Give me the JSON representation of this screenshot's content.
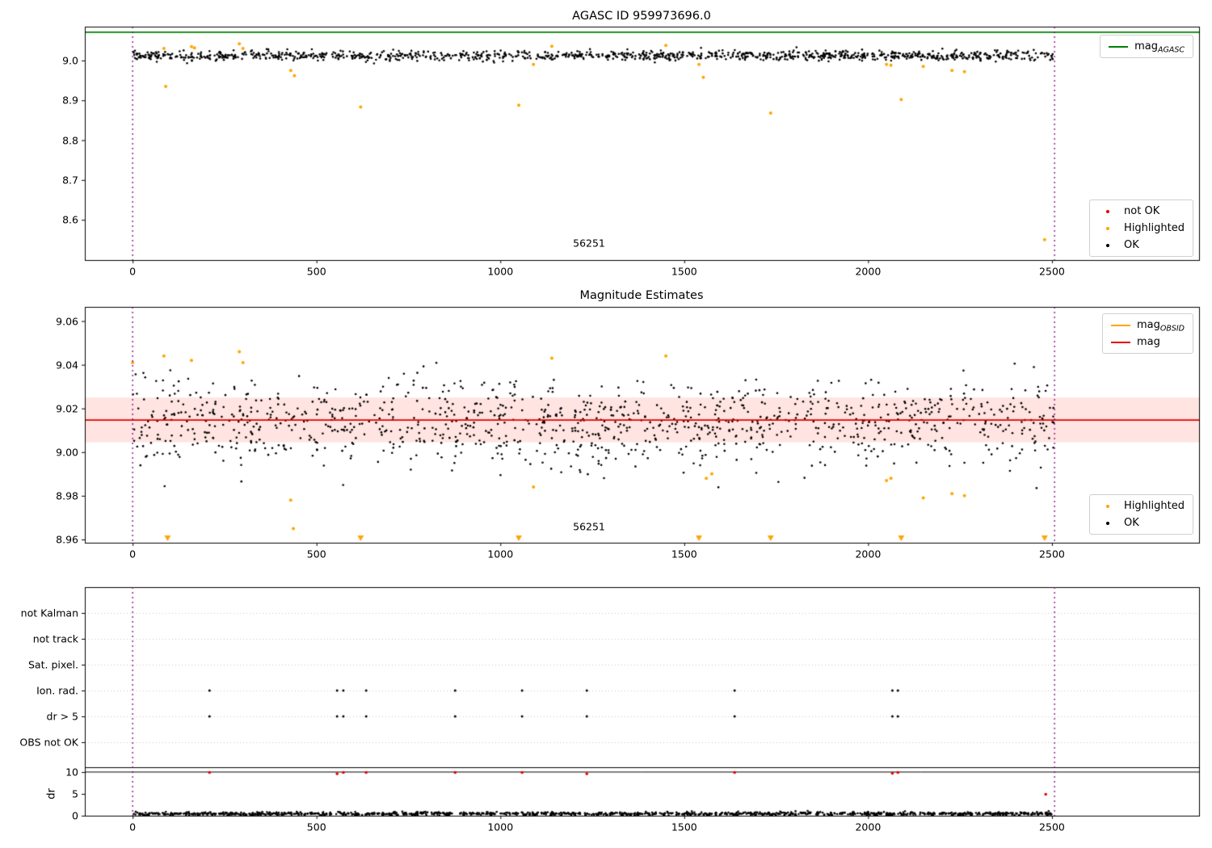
{
  "chart_data": [
    {
      "id": "agasc-mag-panel",
      "type": "scatter",
      "title": "AGASC ID 959973696.0",
      "xlim": [
        -130,
        2900
      ],
      "ylim": [
        8.499,
        9.085
      ],
      "xticks": [
        "0",
        "500",
        "1000",
        "1500",
        "2000",
        "2500"
      ],
      "yticks": [
        "8.6",
        "8.7",
        "8.8",
        "8.9",
        "9.0"
      ],
      "mag_agasc_line": {
        "value": 9.071,
        "color": "#008000"
      },
      "vlines": {
        "x": [
          0,
          2507
        ],
        "color": "#800080",
        "style": "dotted"
      },
      "obsid_annotation": {
        "text": "56251",
        "x": 1241,
        "y": 8.53
      },
      "ok_scatter": {
        "count": 1150,
        "x_range": [
          0,
          2505
        ],
        "mean": 9.012,
        "std": 0.0062,
        "clip": [
          8.988,
          9.036
        ],
        "color": "#000000",
        "seed": 12345
      },
      "highlighted_points": [
        [
          85,
          9.03
        ],
        [
          90,
          8.935
        ],
        [
          160,
          9.035
        ],
        [
          168,
          9.032
        ],
        [
          290,
          9.042
        ],
        [
          300,
          9.03
        ],
        [
          430,
          8.975
        ],
        [
          440,
          8.962
        ],
        [
          620,
          8.883
        ],
        [
          1050,
          8.888
        ],
        [
          1090,
          8.99
        ],
        [
          1140,
          9.036
        ],
        [
          1450,
          9.038
        ],
        [
          1540,
          8.99
        ],
        [
          1552,
          8.958
        ],
        [
          1735,
          8.868
        ],
        [
          2050,
          8.99
        ],
        [
          2062,
          8.988
        ],
        [
          2090,
          8.902
        ],
        [
          2150,
          8.985
        ],
        [
          2228,
          8.975
        ],
        [
          2262,
          8.972
        ],
        [
          2480,
          8.55
        ]
      ],
      "highlight_color": "#FFA500",
      "legend_top": [
        {
          "main": "mag",
          "sub": "AGASC",
          "color": "#008000",
          "marker": "line"
        }
      ],
      "legend_bottom": [
        {
          "label": "not OK",
          "color": "#e60000",
          "marker": "dot"
        },
        {
          "label": "Highlighted",
          "color": "#FFA500",
          "marker": "dot"
        },
        {
          "label": "OK",
          "color": "#000000",
          "marker": "dot"
        }
      ]
    },
    {
      "id": "magnitude-estimates-panel",
      "type": "scatter",
      "title": "Magnitude Estimates",
      "xlim": [
        -130,
        2900
      ],
      "ylim": [
        8.9585,
        9.0665
      ],
      "xticks": [
        "0",
        "500",
        "1000",
        "1500",
        "2000",
        "2500"
      ],
      "yticks": [
        "8.96",
        "8.98",
        "9.00",
        "9.02",
        "9.04",
        "9.06"
      ],
      "mag_line": {
        "value": 9.0147,
        "color": "#e60000"
      },
      "mag_band": {
        "low": 9.0045,
        "high": 9.025,
        "color": "rgba(255,90,70,0.16)"
      },
      "vlines": {
        "x": [
          0,
          2507
        ],
        "color": "#800080",
        "style": "dotted"
      },
      "obsid_annotation": {
        "text": "56251",
        "x": 1241,
        "y": 8.9635
      },
      "ok_scatter": {
        "count": 1150,
        "x_range": [
          0,
          2505
        ],
        "mean": 9.0135,
        "std": 0.0095,
        "clip": [
          8.979,
          9.047
        ],
        "color": "#000000",
        "seed": 777
      },
      "highlighted_points": [
        [
          0,
          9.041
        ],
        [
          85,
          9.044
        ],
        [
          160,
          9.042
        ],
        [
          290,
          9.046
        ],
        [
          300,
          9.041
        ],
        [
          430,
          8.978
        ],
        [
          437,
          8.965
        ],
        [
          1090,
          8.984
        ],
        [
          1140,
          9.043
        ],
        [
          1450,
          9.044
        ],
        [
          1560,
          8.988
        ],
        [
          1575,
          8.99
        ],
        [
          2050,
          8.987
        ],
        [
          2062,
          8.988
        ],
        [
          2150,
          8.979
        ],
        [
          2228,
          8.981
        ],
        [
          2262,
          8.98
        ]
      ],
      "clipped_low_x": [
        95,
        620,
        1050,
        1540,
        1735,
        2090,
        2480
      ],
      "clipped_low_value": 8.9605,
      "highlight_color": "#FFA500",
      "legend_top": [
        {
          "main": "mag",
          "sub": "OBSID",
          "color": "#FFA500",
          "marker": "line"
        },
        {
          "main": "mag",
          "sub": "",
          "color": "#e60000",
          "marker": "line"
        }
      ],
      "legend_bottom": [
        {
          "label": "Highlighted",
          "color": "#FFA500",
          "marker": "dot"
        },
        {
          "label": "OK",
          "color": "#000000",
          "marker": "dot"
        }
      ]
    },
    {
      "id": "flags-panel",
      "type": "scatter",
      "categories": [
        "not Kalman",
        "not track",
        "Sat. pixel.",
        "Ion. rad.",
        "dr > 5",
        "OBS not OK"
      ],
      "xlim": [
        -130,
        2900
      ],
      "flag_points": {
        "ion_rad_x": [
          209,
          556,
          573,
          635,
          877,
          1059,
          1235,
          1637,
          2066,
          2081
        ],
        "dr_gt5_x": [
          209,
          556,
          573,
          635,
          877,
          1059,
          1235,
          1637,
          2066,
          2081
        ]
      },
      "vlines": {
        "x": [
          0,
          2507
        ],
        "color": "#800080",
        "style": "dotted"
      },
      "grid": true
    },
    {
      "id": "dr-panel",
      "type": "scatter",
      "ylabel": "dr",
      "xlim": [
        -130,
        2900
      ],
      "ylim": [
        0,
        11.1
      ],
      "xticks": [
        "0",
        "500",
        "1000",
        "1500",
        "2000",
        "2500"
      ],
      "yticks": [
        "0",
        "5",
        "10"
      ],
      "threshold_line": {
        "value": 10,
        "color": "#000000"
      },
      "ok_scatter": {
        "count": 1150,
        "x_range": [
          0,
          2505
        ],
        "mean": 0.45,
        "std": 0.2,
        "clip": [
          0.05,
          1.35
        ],
        "color": "#000000",
        "seed": 99
      },
      "not_ok_points": [
        [
          209,
          9.9
        ],
        [
          556,
          9.6
        ],
        [
          573,
          9.9
        ],
        [
          635,
          9.9
        ],
        [
          877,
          9.9
        ],
        [
          1059,
          9.9
        ],
        [
          1235,
          9.6
        ],
        [
          1637,
          9.9
        ],
        [
          2066,
          9.7
        ],
        [
          2081,
          9.9
        ],
        [
          2483,
          4.9
        ]
      ],
      "not_ok_color": "#e60000",
      "vlines": {
        "x": [
          0,
          2507
        ],
        "color": "#800080",
        "style": "dotted"
      }
    }
  ]
}
